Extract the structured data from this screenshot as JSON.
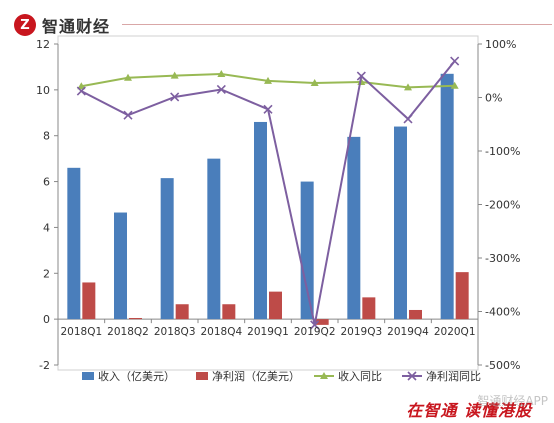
{
  "brand": {
    "logo_glyph": "Z",
    "name": "智通财经"
  },
  "footer": {
    "slogan": "在智通 读懂港股",
    "watermark": "智通财经APP"
  },
  "colors": {
    "revenue": "#4a7ebb",
    "net_profit": "#be4b48",
    "revenue_yoy": "#98b954",
    "net_profit_yoy": "#7d5fa0",
    "brand_red": "#c8161e"
  },
  "chart_data": {
    "type": "bar",
    "categories": [
      "2018Q1",
      "2018Q2",
      "2018Q3",
      "2018Q4",
      "2019Q1",
      "2019Q2",
      "2019Q3",
      "2019Q4",
      "2020Q1"
    ],
    "series": [
      {
        "name": "收入（亿美元）",
        "type": "bar",
        "axis": "left",
        "values": [
          6.6,
          4.65,
          6.15,
          7.0,
          8.6,
          6.0,
          7.95,
          8.4,
          10.7
        ]
      },
      {
        "name": "净利润（亿美元）",
        "type": "bar",
        "axis": "left",
        "values": [
          1.6,
          0.05,
          0.65,
          0.65,
          1.2,
          -0.25,
          0.95,
          0.4,
          2.05
        ]
      },
      {
        "name": "收入同比",
        "type": "line",
        "axis": "right",
        "values": [
          21,
          37,
          41,
          44,
          31,
          27,
          29,
          19,
          22
        ]
      },
      {
        "name": "净利润同比",
        "type": "line",
        "axis": "right",
        "values": [
          12,
          -33,
          1,
          15,
          -22,
          -425,
          40,
          -40,
          68
        ]
      }
    ],
    "left_axis": {
      "min": -2,
      "max": 12,
      "step": 2,
      "tick_labels": [
        "-2",
        "0",
        "2",
        "4",
        "6",
        "8",
        "10",
        "12"
      ]
    },
    "right_axis": {
      "min": -500,
      "max": 100,
      "step": 100,
      "tick_labels": [
        "-500%",
        "-400%",
        "-300%",
        "-200%",
        "-100%",
        "0%",
        "100%"
      ]
    },
    "title": "",
    "xlabel": "",
    "ylabel": "",
    "grid": false,
    "legend": "bottom"
  }
}
